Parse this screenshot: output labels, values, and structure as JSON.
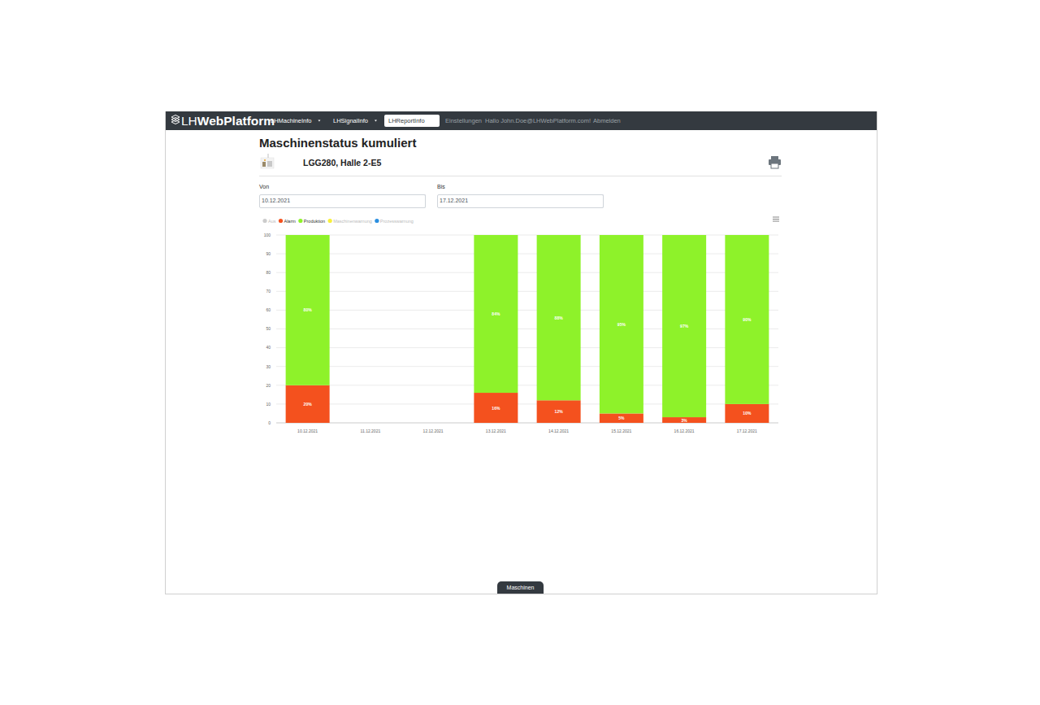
{
  "nav": {
    "brand_light": "LH",
    "brand_bold": "WebPlatform",
    "menus": [
      {
        "label": "LHMachineInfo",
        "active": false
      },
      {
        "label": "LHSignalInfo",
        "active": false
      },
      {
        "label": "LHReportInfo",
        "active": true
      }
    ],
    "links": [
      "Einstellungen",
      "Hallo John.Doe@LHWebPlatform.com!",
      "Abmelden"
    ]
  },
  "header": {
    "title": "Maschinenstatus kumuliert",
    "machine": "LGG280, Halle 2-E5"
  },
  "filters": [
    {
      "label": "Von",
      "value": "10.12.2021"
    },
    {
      "label": "Bis",
      "value": "17.12.2021"
    }
  ],
  "footer_tab": "Maschinen",
  "chart_data": {
    "type": "bar",
    "stacked": true,
    "data_labels": true,
    "grid": true,
    "legend": "top-left",
    "categories": [
      "10.12.2021",
      "11.12.2021",
      "12.12.2021",
      "13.12.2021",
      "14.12.2021",
      "15.12.2021",
      "16.12.2021",
      "17.12.2021"
    ],
    "ylim": [
      0,
      100
    ],
    "yticks": [
      0,
      10,
      20,
      30,
      40,
      50,
      60,
      70,
      80,
      90,
      100
    ],
    "series": [
      {
        "name": "Aus",
        "color": "#cccccc",
        "values": [
          null,
          null,
          null,
          null,
          null,
          null,
          null,
          null
        ]
      },
      {
        "name": "Alarm",
        "color": "#f4511e",
        "values": [
          20,
          null,
          null,
          16,
          12,
          5,
          3,
          10
        ],
        "value_labels": [
          "20%",
          null,
          null,
          "16%",
          "12%",
          "5%",
          "3%",
          "10%"
        ]
      },
      {
        "name": "Produktion",
        "color": "#8ef22a",
        "values": [
          80,
          null,
          null,
          84,
          88,
          95,
          97,
          90
        ],
        "value_labels": [
          "80%",
          null,
          null,
          "84%",
          "88%",
          "95%",
          "97%",
          "90%"
        ]
      },
      {
        "name": "Maschinenwarnung",
        "color": "#f7ef3a",
        "values": [
          null,
          null,
          null,
          null,
          null,
          null,
          null,
          null
        ]
      },
      {
        "name": "Prozesswarnung",
        "color": "#2b8fe0",
        "values": [
          null,
          null,
          null,
          null,
          null,
          null,
          null,
          null
        ]
      }
    ]
  }
}
